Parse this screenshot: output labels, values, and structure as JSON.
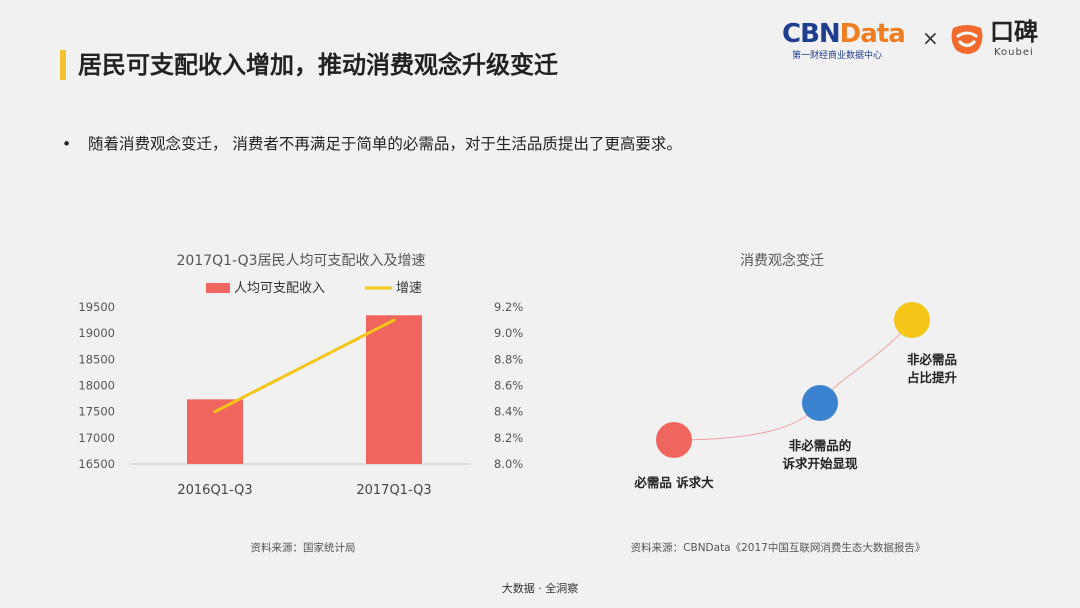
{
  "header": {
    "title": "居民可支配收入增加，推动消费观念升级变迁",
    "logo": {
      "cbn_part1": "CBN",
      "cbn_part2": "Data",
      "cbn_sub": "第一财经商业数据中心",
      "cross": "×",
      "koubei_cn": "口碑",
      "koubei_en": "Koubei"
    }
  },
  "bullet": {
    "marker": "•",
    "text": "随着消费观念变迁， 消费者不再满足于简单的必需品，对于生活品质提出了更高要求。"
  },
  "chart_data": [
    {
      "type": "bar",
      "title": "2017Q1-Q3居民人均可支配收入及增速",
      "categories": [
        "2016Q1-Q3",
        "2017Q1-Q3"
      ],
      "series": [
        {
          "name": "人均可支配收入",
          "type": "bar",
          "axis": "left",
          "color": "#f0665f",
          "values": [
            17735,
            19342
          ]
        },
        {
          "name": "增速",
          "type": "line",
          "axis": "right",
          "color": "#f5c518",
          "values": [
            8.4,
            9.1
          ]
        }
      ],
      "y_left": {
        "ylim": [
          16500,
          19500
        ],
        "ticks": [
          "16500",
          "17000",
          "17500",
          "18000",
          "18500",
          "19000",
          "19500"
        ]
      },
      "y_right": {
        "ylim": [
          8.0,
          9.2
        ],
        "ticks": [
          "8.0%",
          "8.2%",
          "8.4%",
          "8.6%",
          "8.8%",
          "9.0%",
          "9.2%"
        ]
      },
      "legend": "top",
      "grid": false,
      "source": "资料来源：国家统计局"
    },
    {
      "type": "diagram",
      "title": "消费观念变迁",
      "stages": [
        {
          "label_lines": [
            "必需品 诉求大"
          ],
          "color": "#f0665f"
        },
        {
          "label_lines": [
            "非必需品的",
            "诉求开始显现"
          ],
          "color": "#3b82d0"
        },
        {
          "label_lines": [
            "非必需品",
            "占比提升"
          ],
          "color": "#f5c518"
        }
      ],
      "source": "资料来源：CBNData《2017中国互联网消费生态大数据报告》"
    }
  ],
  "footer": "大数据 · 全洞察"
}
